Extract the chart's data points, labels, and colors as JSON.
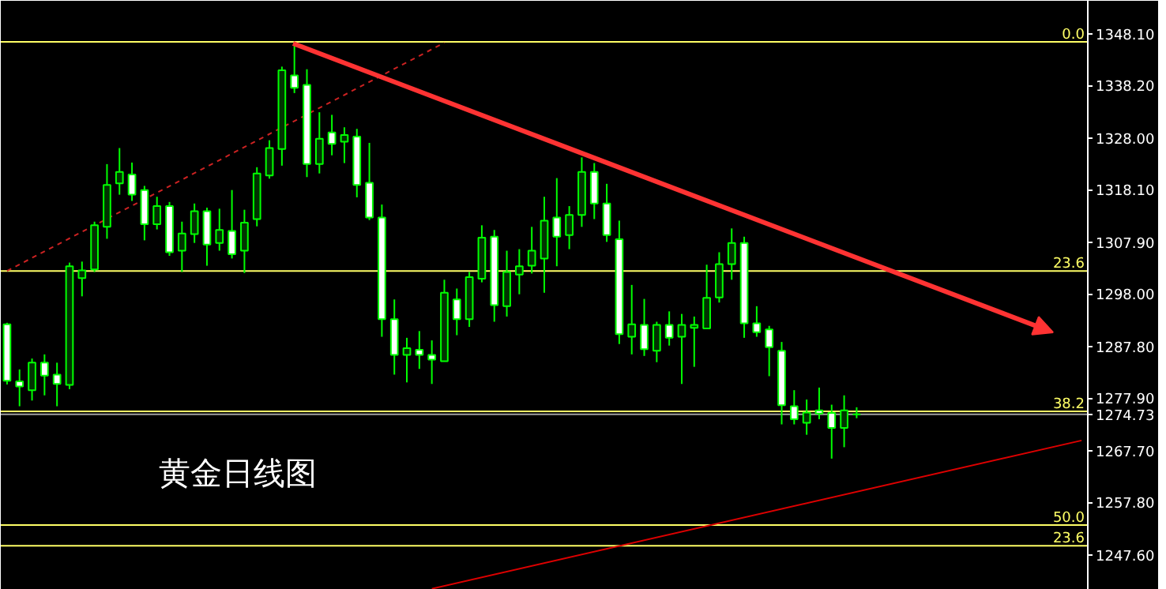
{
  "chart_data": {
    "type": "candlestick",
    "categories": [
      null,
      null,
      null,
      null,
      null,
      null,
      null,
      null,
      null,
      null,
      null,
      null,
      null,
      null,
      null,
      null,
      null,
      null,
      null,
      null,
      null,
      null,
      null,
      null,
      null,
      null,
      null,
      null,
      null,
      null,
      null,
      null,
      null,
      null,
      null,
      null,
      null,
      null,
      null,
      null,
      null,
      null,
      null,
      null,
      null,
      null,
      null,
      null,
      null,
      null,
      null,
      null,
      null,
      null,
      null,
      null,
      null,
      null,
      null,
      null,
      null,
      null,
      null,
      null,
      null,
      null,
      null,
      null,
      null,
      null,
      null,
      null,
      null,
      null,
      null,
      null,
      null,
      null,
      null,
      null,
      null,
      null,
      null,
      null,
      null,
      null,
      null
    ],
    "color": "#00ff00",
    "ohlc": [
      [
        1292.1,
        1292.4,
        1280.5,
        1281.2
      ],
      [
        1281.1,
        1283.4,
        1276.3,
        1280.1
      ],
      [
        1279.4,
        1285.5,
        1277.4,
        1284.7
      ],
      [
        1284.7,
        1286.3,
        1278.4,
        1282.2
      ],
      [
        1282.4,
        1284.7,
        1276.3,
        1280.6
      ],
      [
        1280.4,
        1304.0,
        1279.6,
        1303.3
      ],
      [
        1301.0,
        1304.2,
        1297.5,
        1302.5
      ],
      [
        1302.7,
        1311.9,
        1302.2,
        1311.2
      ],
      [
        1310.9,
        1323.0,
        1308.6,
        1319.0
      ],
      [
        1319.3,
        1326.1,
        1317.1,
        1321.5
      ],
      [
        1321.0,
        1323.3,
        1315.9,
        1317.1
      ],
      [
        1318.0,
        1318.8,
        1308.3,
        1311.4
      ],
      [
        1311.4,
        1316.7,
        1310.4,
        1314.9
      ],
      [
        1314.9,
        1315.7,
        1305.3,
        1306.0
      ],
      [
        1306.3,
        1311.9,
        1302.2,
        1309.6
      ],
      [
        1309.5,
        1315.4,
        1307.8,
        1313.9
      ],
      [
        1313.9,
        1314.6,
        1303.4,
        1307.5
      ],
      [
        1307.8,
        1314.4,
        1306.3,
        1310.3
      ],
      [
        1310.1,
        1318.0,
        1304.8,
        1305.6
      ],
      [
        1306.3,
        1314.2,
        1302.0,
        1311.7
      ],
      [
        1312.4,
        1322.4,
        1311.0,
        1321.2
      ],
      [
        1320.8,
        1327.6,
        1320.2,
        1326.1
      ],
      [
        1325.9,
        1341.8,
        1322.7,
        1341.1
      ],
      [
        1340.1,
        1346.6,
        1336.7,
        1337.7
      ],
      [
        1338.3,
        1341.3,
        1320.5,
        1323.0
      ],
      [
        1323.0,
        1333.0,
        1321.2,
        1327.9
      ],
      [
        1329.1,
        1332.5,
        1324.7,
        1326.9
      ],
      [
        1327.3,
        1330.1,
        1323.2,
        1328.6
      ],
      [
        1328.3,
        1329.8,
        1316.6,
        1319.0
      ],
      [
        1319.4,
        1327.1,
        1312.2,
        1312.7
      ],
      [
        1312.7,
        1315.2,
        1289.7,
        1293.1
      ],
      [
        1293.1,
        1296.9,
        1282.4,
        1286.2
      ],
      [
        1286.2,
        1289.5,
        1280.9,
        1287.5
      ],
      [
        1287.2,
        1290.8,
        1283.5,
        1286.2
      ],
      [
        1286.2,
        1289.0,
        1280.6,
        1285.3
      ],
      [
        1285.0,
        1300.7,
        1285.0,
        1298.2
      ],
      [
        1296.9,
        1299.0,
        1290.0,
        1293.1
      ],
      [
        1293.1,
        1302.2,
        1291.6,
        1301.2
      ],
      [
        1300.9,
        1311.2,
        1300.2,
        1308.8
      ],
      [
        1309.0,
        1310.3,
        1292.6,
        1295.8
      ],
      [
        1295.6,
        1306.3,
        1293.6,
        1302.2
      ],
      [
        1301.7,
        1306.6,
        1297.9,
        1303.3
      ],
      [
        1303.4,
        1310.9,
        1301.9,
        1306.3
      ],
      [
        1304.8,
        1316.7,
        1298.2,
        1312.1
      ],
      [
        1312.7,
        1320.3,
        1303.3,
        1309.0
      ],
      [
        1309.3,
        1314.9,
        1306.6,
        1313.2
      ],
      [
        1313.2,
        1324.3,
        1310.9,
        1321.5
      ],
      [
        1321.5,
        1323.2,
        1312.4,
        1315.4
      ],
      [
        1315.4,
        1319.2,
        1308.0,
        1309.3
      ],
      [
        1308.5,
        1312.1,
        1288.3,
        1290.2
      ],
      [
        1289.7,
        1299.7,
        1286.3,
        1292.1
      ],
      [
        1292.0,
        1297.0,
        1286.0,
        1287.3
      ],
      [
        1287.0,
        1292.6,
        1284.8,
        1292.0
      ],
      [
        1292.0,
        1294.6,
        1288.0,
        1289.5
      ],
      [
        1289.7,
        1294.1,
        1280.6,
        1292.0
      ],
      [
        1291.4,
        1293.6,
        1283.9,
        1292.0
      ],
      [
        1291.3,
        1303.6,
        1291.3,
        1297.2
      ],
      [
        1297.3,
        1306.0,
        1296.3,
        1303.7
      ],
      [
        1303.7,
        1310.6,
        1300.7,
        1307.8
      ],
      [
        1307.8,
        1309.0,
        1289.5,
        1292.3
      ],
      [
        1292.3,
        1295.6,
        1289.7,
        1290.6
      ],
      [
        1291.1,
        1291.8,
        1282.1,
        1287.7
      ],
      [
        1287.0,
        1288.7,
        1272.8,
        1276.5
      ],
      [
        1276.3,
        1279.4,
        1272.8,
        1273.8
      ],
      [
        1273.1,
        1277.6,
        1270.8,
        1275.1
      ],
      [
        1275.5,
        1279.9,
        1273.8,
        1274.9
      ],
      [
        1275.0,
        1276.6,
        1266.2,
        1272.1
      ],
      [
        1272.1,
        1278.4,
        1268.4,
        1275.5
      ],
      [
        1274.7,
        1276.1,
        1274.0,
        1274.73
      ],
      null,
      null,
      null,
      null,
      null,
      null,
      null,
      null,
      null,
      null,
      null,
      null,
      null,
      null,
      null,
      null,
      null,
      null
    ],
    "series": [
      {
        "type": "line",
        "color": "#cc2222",
        "line_style": "dashed",
        "values": [
          1302.4,
          null,
          null,
          null,
          null,
          null,
          null,
          null,
          null,
          null,
          null,
          null,
          null,
          null,
          null,
          null,
          null,
          null,
          null,
          null,
          null,
          null,
          null,
          null,
          null,
          null,
          null,
          null,
          null,
          null,
          null,
          null,
          null,
          null,
          null,
          1346.4,
          null,
          null,
          null,
          null,
          null,
          null,
          null,
          null,
          null,
          null,
          null,
          null,
          null,
          null,
          null,
          null,
          null,
          null,
          null,
          null,
          null,
          null,
          null,
          null,
          null,
          null,
          null,
          null,
          null,
          null,
          null,
          null,
          null,
          null,
          null,
          null,
          null,
          null,
          null,
          null,
          null,
          null,
          null,
          null,
          null,
          null,
          null,
          null,
          null,
          null,
          null
        ]
      },
      {
        "type": "line",
        "color": "#dd0000",
        "values": [
          null,
          null,
          null,
          null,
          null,
          null,
          null,
          null,
          null,
          null,
          null,
          null,
          null,
          null,
          null,
          null,
          null,
          null,
          null,
          null,
          null,
          null,
          null,
          null,
          null,
          null,
          null,
          null,
          null,
          null,
          null,
          null,
          null,
          null,
          1241.1,
          null,
          null,
          null,
          null,
          null,
          null,
          null,
          null,
          null,
          null,
          null,
          null,
          null,
          null,
          null,
          null,
          null,
          null,
          null,
          null,
          null,
          null,
          null,
          null,
          null,
          null,
          null,
          null,
          null,
          null,
          null,
          null,
          null,
          null,
          null,
          null,
          null,
          null,
          null,
          null,
          null,
          null,
          null,
          null,
          null,
          null,
          null,
          null,
          null,
          null,
          null,
          1269.7
        ]
      }
    ],
    "ylim": [
      1240.9,
      1354.5
    ],
    "yticks": [
      {
        "value": 1348.1,
        "label": "1348.10"
      },
      {
        "value": 1338.2,
        "label": "1338.20"
      },
      {
        "value": 1328.0,
        "label": "1328.00"
      },
      {
        "value": 1318.1,
        "label": "1318.10"
      },
      {
        "value": 1307.9,
        "label": "1307.90"
      },
      {
        "value": 1298.0,
        "label": "1298.00"
      },
      {
        "value": 1287.8,
        "label": "1287.80"
      },
      {
        "value": 1277.9,
        "label": "1277.90"
      },
      {
        "value": 1267.7,
        "label": "1267.70"
      },
      {
        "value": 1257.8,
        "label": "1257.80"
      },
      {
        "value": 1247.6,
        "label": "1247.60"
      }
    ],
    "tick_labels": "y",
    "grid": false,
    "ref_lines": [
      {
        "axis": "y",
        "value": 1346.6,
        "color": "#ffff66"
      },
      {
        "axis": "y",
        "value": 1302.4,
        "color": "#ffff66"
      },
      {
        "axis": "y",
        "value": 1275.3,
        "color": "#ffff66"
      },
      {
        "axis": "y",
        "value": 1253.4,
        "color": "#ffff66"
      },
      {
        "axis": "y",
        "value": 1249.4,
        "color": "#ffff66"
      },
      {
        "axis": "y",
        "value": 1274.73,
        "label": "1274.73",
        "color": "#a0a0a0"
      }
    ],
    "annotations": [
      "黄金日线图",
      {
        "text": "0.0",
        "y": 1346.6
      },
      {
        "text": "23.6",
        "y": 1302.4
      },
      {
        "text": "38.2",
        "y": 1275.3
      },
      {
        "text": "50.0",
        "y": 1253.4
      },
      {
        "text": "23.6",
        "y": 1249.4
      }
    ]
  }
}
